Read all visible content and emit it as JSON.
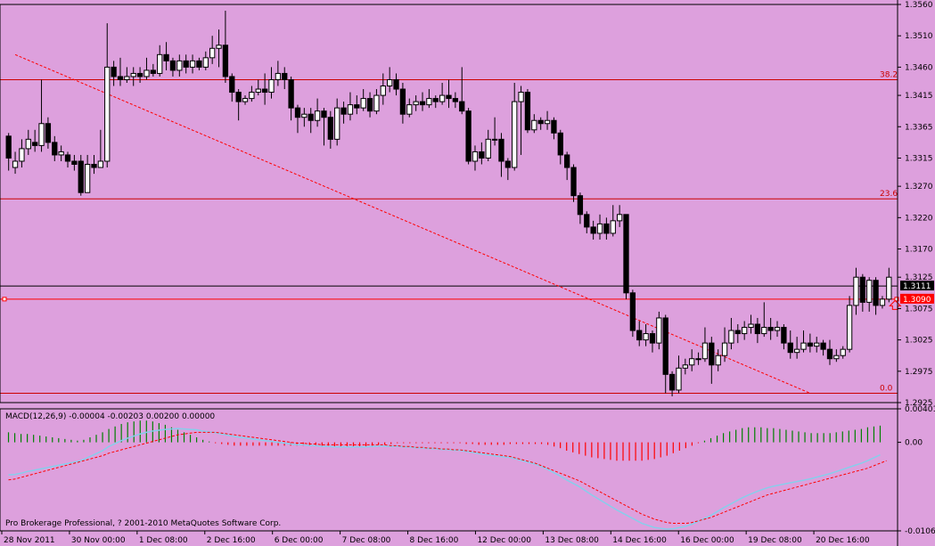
{
  "chart_data": [
    {
      "type": "candlestick",
      "ylim": [
        1.2925,
        1.356
      ],
      "price_ticks": [
        "1.3560",
        "1.3510",
        "1.3460",
        "1.3415",
        "1.3365",
        "1.3315",
        "1.3270",
        "1.3220",
        "1.3170",
        "1.3125",
        "1.3075",
        "1.3025",
        "1.2975",
        "1.2925"
      ],
      "time_labels": [
        "28 Nov 2011",
        "30 Nov 00:00",
        "1 Dec 08:00",
        "2 Dec 16:00",
        "6 Dec 00:00",
        "7 Dec 08:00",
        "8 Dec 16:00",
        "12 Dec 00:00",
        "13 Dec 08:00",
        "14 Dec 16:00",
        "16 Dec 00:00",
        "19 Dec 08:00",
        "20 Dec 16:00"
      ],
      "horizontal_lines": [
        {
          "label": "38.2",
          "price": 1.344,
          "color": "#cc0000"
        },
        {
          "label": "23.6",
          "price": 1.325,
          "color": "#cc0000"
        },
        {
          "label": "0.0",
          "price": 1.294,
          "color": "#cc0000"
        },
        {
          "label": "1.3111",
          "price": 1.3111,
          "color": "#000000"
        },
        {
          "label": "1.3090",
          "price": 1.309,
          "color": "#ff0000"
        }
      ],
      "trendline": {
        "start": [
          1,
          1.348
        ],
        "end": [
          122,
          1.294
        ],
        "color": "#ff0000",
        "style": "dashed"
      },
      "candles": [
        [
          1.335,
          1.3315,
          1.3355,
          1.3295
        ],
        [
          1.33,
          1.331,
          1.3325,
          1.329
        ],
        [
          1.331,
          1.333,
          1.3345,
          1.33
        ],
        [
          1.333,
          1.3345,
          1.336,
          1.332
        ],
        [
          1.334,
          1.3335,
          1.336,
          1.3325
        ],
        [
          1.3335,
          1.337,
          1.344,
          1.3325
        ],
        [
          1.337,
          1.334,
          1.338,
          1.333
        ],
        [
          1.334,
          1.332,
          1.335,
          1.331
        ],
        [
          1.332,
          1.3325,
          1.3335,
          1.331
        ],
        [
          1.332,
          1.331,
          1.3325,
          1.33
        ],
        [
          1.331,
          1.3305,
          1.332,
          1.3295
        ],
        [
          1.331,
          1.326,
          1.332,
          1.3255
        ],
        [
          1.326,
          1.3305,
          1.332,
          1.326
        ],
        [
          1.3305,
          1.33,
          1.332,
          1.329
        ],
        [
          1.33,
          1.331,
          1.336,
          1.33
        ],
        [
          1.331,
          1.346,
          1.353,
          1.33
        ],
        [
          1.346,
          1.3445,
          1.347,
          1.343
        ],
        [
          1.3445,
          1.344,
          1.3475,
          1.343
        ],
        [
          1.344,
          1.3445,
          1.346,
          1.3435
        ],
        [
          1.3445,
          1.345,
          1.346,
          1.343
        ],
        [
          1.345,
          1.3445,
          1.346,
          1.3435
        ],
        [
          1.3445,
          1.3455,
          1.3475,
          1.344
        ],
        [
          1.3455,
          1.345,
          1.3465,
          1.3445
        ],
        [
          1.345,
          1.348,
          1.3495,
          1.3445
        ],
        [
          1.348,
          1.347,
          1.35,
          1.3455
        ],
        [
          1.347,
          1.3455,
          1.3475,
          1.3445
        ],
        [
          1.3455,
          1.347,
          1.348,
          1.3445
        ],
        [
          1.347,
          1.346,
          1.348,
          1.345
        ],
        [
          1.346,
          1.347,
          1.348,
          1.345
        ],
        [
          1.347,
          1.346,
          1.3475,
          1.3455
        ],
        [
          1.346,
          1.3475,
          1.3485,
          1.3455
        ],
        [
          1.3475,
          1.349,
          1.351,
          1.3465
        ],
        [
          1.349,
          1.3495,
          1.352,
          1.346
        ],
        [
          1.3495,
          1.3445,
          1.355,
          1.3435
        ],
        [
          1.3445,
          1.342,
          1.345,
          1.3405
        ],
        [
          1.342,
          1.3405,
          1.3425,
          1.3375
        ],
        [
          1.3405,
          1.341,
          1.3415,
          1.34
        ],
        [
          1.341,
          1.342,
          1.343,
          1.3405
        ],
        [
          1.342,
          1.3425,
          1.344,
          1.3415
        ],
        [
          1.3425,
          1.342,
          1.345,
          1.34
        ],
        [
          1.342,
          1.344,
          1.346,
          1.341
        ],
        [
          1.344,
          1.345,
          1.347,
          1.343
        ],
        [
          1.345,
          1.344,
          1.346,
          1.3425
        ],
        [
          1.344,
          1.3395,
          1.3445,
          1.3375
        ],
        [
          1.3395,
          1.338,
          1.34,
          1.3355
        ],
        [
          1.338,
          1.3385,
          1.3395,
          1.3365
        ],
        [
          1.3385,
          1.3375,
          1.3395,
          1.3355
        ],
        [
          1.3375,
          1.339,
          1.341,
          1.3365
        ],
        [
          1.339,
          1.338,
          1.3395,
          1.3335
        ],
        [
          1.338,
          1.3345,
          1.339,
          1.333
        ],
        [
          1.3345,
          1.3395,
          1.341,
          1.3335
        ],
        [
          1.3395,
          1.3385,
          1.3405,
          1.337
        ],
        [
          1.3385,
          1.34,
          1.342,
          1.3375
        ],
        [
          1.34,
          1.3395,
          1.3415,
          1.3385
        ],
        [
          1.3395,
          1.341,
          1.3425,
          1.339
        ],
        [
          1.341,
          1.339,
          1.342,
          1.338
        ],
        [
          1.339,
          1.3415,
          1.3425,
          1.3385
        ],
        [
          1.3415,
          1.343,
          1.345,
          1.34
        ],
        [
          1.343,
          1.344,
          1.346,
          1.342
        ],
        [
          1.344,
          1.3425,
          1.345,
          1.3415
        ],
        [
          1.3425,
          1.3385,
          1.3435,
          1.337
        ],
        [
          1.3385,
          1.34,
          1.341,
          1.338
        ],
        [
          1.34,
          1.3405,
          1.3415,
          1.339
        ],
        [
          1.3405,
          1.34,
          1.342,
          1.339
        ],
        [
          1.34,
          1.341,
          1.3425,
          1.3395
        ],
        [
          1.341,
          1.3405,
          1.3415,
          1.3395
        ],
        [
          1.3405,
          1.3415,
          1.3435,
          1.34
        ],
        [
          1.3415,
          1.341,
          1.344,
          1.3395
        ],
        [
          1.341,
          1.3405,
          1.342,
          1.3395
        ],
        [
          1.3405,
          1.339,
          1.346,
          1.3385
        ],
        [
          1.339,
          1.331,
          1.3395,
          1.3305
        ],
        [
          1.331,
          1.3325,
          1.3335,
          1.3295
        ],
        [
          1.3325,
          1.3315,
          1.334,
          1.3305
        ],
        [
          1.3315,
          1.3345,
          1.336,
          1.331
        ],
        [
          1.3345,
          1.3345,
          1.338,
          1.3335
        ],
        [
          1.3345,
          1.331,
          1.3355,
          1.3285
        ],
        [
          1.331,
          1.33,
          1.3315,
          1.328
        ],
        [
          1.33,
          1.3405,
          1.3435,
          1.3295
        ],
        [
          1.3405,
          1.342,
          1.343,
          1.332
        ],
        [
          1.342,
          1.336,
          1.3425,
          1.3355
        ],
        [
          1.336,
          1.3375,
          1.3385,
          1.3355
        ],
        [
          1.3375,
          1.337,
          1.338,
          1.336
        ],
        [
          1.337,
          1.3375,
          1.339,
          1.336
        ],
        [
          1.3375,
          1.3355,
          1.338,
          1.3345
        ],
        [
          1.3355,
          1.332,
          1.336,
          1.3305
        ],
        [
          1.332,
          1.33,
          1.3325,
          1.328
        ],
        [
          1.33,
          1.3255,
          1.3305,
          1.3245
        ],
        [
          1.3255,
          1.3225,
          1.326,
          1.321
        ],
        [
          1.3225,
          1.3205,
          1.323,
          1.3195
        ],
        [
          1.3205,
          1.3195,
          1.3215,
          1.3185
        ],
        [
          1.3195,
          1.321,
          1.3225,
          1.3185
        ],
        [
          1.321,
          1.3195,
          1.322,
          1.3185
        ],
        [
          1.3195,
          1.3215,
          1.324,
          1.319
        ],
        [
          1.3215,
          1.3225,
          1.324,
          1.3205
        ],
        [
          1.3225,
          1.31,
          1.3225,
          1.309
        ],
        [
          1.31,
          1.304,
          1.3105,
          1.303
        ],
        [
          1.304,
          1.3025,
          1.3055,
          1.3015
        ],
        [
          1.3025,
          1.3035,
          1.305,
          1.3015
        ],
        [
          1.3035,
          1.302,
          1.304,
          1.3005
        ],
        [
          1.302,
          1.306,
          1.307,
          1.301
        ],
        [
          1.306,
          1.297,
          1.3065,
          1.294
        ],
        [
          1.297,
          1.2945,
          1.2975,
          1.2935
        ],
        [
          1.2945,
          1.298,
          1.3,
          1.294
        ],
        [
          1.298,
          1.2985,
          1.2995,
          1.297
        ],
        [
          1.2985,
          1.2995,
          1.301,
          1.2975
        ],
        [
          1.2995,
          1.2995,
          1.3005,
          1.2985
        ],
        [
          1.2995,
          1.302,
          1.3045,
          1.299
        ],
        [
          1.302,
          1.2985,
          1.303,
          1.2955
        ],
        [
          1.2985,
          1.3,
          1.301,
          1.2975
        ],
        [
          1.3,
          1.302,
          1.3045,
          1.299
        ],
        [
          1.302,
          1.304,
          1.306,
          1.301
        ],
        [
          1.304,
          1.3035,
          1.305,
          1.302
        ],
        [
          1.3035,
          1.3045,
          1.3055,
          1.3025
        ],
        [
          1.3045,
          1.305,
          1.3065,
          1.3035
        ],
        [
          1.305,
          1.3035,
          1.306,
          1.302
        ],
        [
          1.3035,
          1.3045,
          1.3085,
          1.303
        ],
        [
          1.3045,
          1.304,
          1.306,
          1.3025
        ],
        [
          1.304,
          1.3045,
          1.3055,
          1.303
        ],
        [
          1.3045,
          1.302,
          1.305,
          1.301
        ],
        [
          1.302,
          1.3005,
          1.304,
          1.2995
        ],
        [
          1.3005,
          1.301,
          1.303,
          1.2995
        ],
        [
          1.301,
          1.302,
          1.304,
          1.3005
        ],
        [
          1.302,
          1.3015,
          1.3035,
          1.3005
        ],
        [
          1.3015,
          1.302,
          1.303,
          1.3005
        ],
        [
          1.302,
          1.301,
          1.3025,
          1.3
        ],
        [
          1.301,
          1.2995,
          1.3025,
          1.2985
        ],
        [
          1.2995,
          1.3,
          1.301,
          1.299
        ],
        [
          1.3,
          1.301,
          1.3015,
          1.2995
        ],
        [
          1.301,
          1.308,
          1.3095,
          1.3005
        ],
        [
          1.308,
          1.3125,
          1.314,
          1.3065
        ],
        [
          1.3125,
          1.3085,
          1.313,
          1.307
        ],
        [
          1.3085,
          1.312,
          1.3125,
          1.307
        ],
        [
          1.312,
          1.308,
          1.3125,
          1.3065
        ],
        [
          1.308,
          1.309,
          1.3095,
          1.3075
        ],
        [
          1.309,
          1.3125,
          1.314,
          1.3085
        ]
      ],
      "current_price_marker": "arrow-up"
    },
    {
      "type": "histogram+line",
      "title": "MACD(12,26,9) -0.00004 -0.00203 0.00200 0.00000",
      "ylim": [
        -0.0106,
        0.00401
      ],
      "ticks": [
        "0.00401",
        "0.00",
        "-0.0106"
      ],
      "histogram_colors": {
        "positive": "#008000",
        "negative": "#ff0000"
      },
      "histogram": [
        0.0012,
        0.0011,
        0.001,
        0.001,
        0.0009,
        0.0008,
        0.0007,
        0.0006,
        0.0005,
        0.0004,
        0.0003,
        0.0002,
        0.0003,
        0.0006,
        0.0009,
        0.0012,
        0.0016,
        0.0019,
        0.0022,
        0.0024,
        0.0025,
        0.0026,
        0.0026,
        0.0025,
        0.0023,
        0.0021,
        0.0018,
        0.0015,
        0.0012,
        0.0009,
        0.0006,
        0.0003,
        0.0001,
        -0.0001,
        -0.0002,
        -0.0003,
        -0.0004,
        -0.0004,
        -0.0004,
        -0.0004,
        -0.0004,
        -0.0004,
        -0.0004,
        -0.0004,
        -0.0004,
        -0.0004,
        -0.0004,
        -0.0004,
        -0.0004,
        -0.0004,
        -0.0004,
        -0.0004,
        -0.0005,
        -0.0005,
        -0.0005,
        -0.0005,
        -0.0005,
        -0.0005,
        -0.0004,
        -0.0003,
        -0.0003,
        -0.0002,
        -0.0001,
        -0.0001,
        -0.0001,
        -0.0001,
        -0.0001,
        -0.0001,
        -0.0001,
        -0.0001,
        -0.0001,
        -0.0001,
        -0.0001,
        -0.0002,
        -0.0002,
        -0.0003,
        -0.0003,
        -0.0003,
        -0.0003,
        -0.0003,
        -0.0002,
        -0.0002,
        -0.0002,
        -0.0002,
        -0.0002,
        -0.0002,
        -0.0003,
        -0.0005,
        -0.0007,
        -0.001,
        -0.0012,
        -0.0014,
        -0.0016,
        -0.0018,
        -0.0019,
        -0.002,
        -0.0021,
        -0.0022,
        -0.0022,
        -0.0022,
        -0.0022,
        -0.0022,
        -0.0021,
        -0.002,
        -0.0018,
        -0.0016,
        -0.0013,
        -0.001,
        -0.0007,
        -0.0004,
        -0.0001,
        0.0002,
        0.0005,
        0.0008,
        0.0011,
        0.0013,
        0.0015,
        0.0017,
        0.0018,
        0.0018,
        0.0018,
        0.0017,
        0.0017,
        0.0016,
        0.0015,
        0.0014,
        0.0013,
        0.0012,
        0.0011,
        0.0011,
        0.0011,
        0.0011,
        0.0012,
        0.0013,
        0.0014,
        0.0015,
        0.0016,
        0.0018,
        0.0019,
        0.002
      ],
      "signal": [
        -0.0045,
        -0.0044,
        -0.0042,
        -0.004,
        -0.0038,
        -0.0036,
        -0.0034,
        -0.0032,
        -0.003,
        -0.0028,
        -0.0026,
        -0.0024,
        -0.0022,
        -0.002,
        -0.0018,
        -0.0016,
        -0.0013,
        -0.0011,
        -0.0009,
        -0.0007,
        -0.0005,
        -0.0003,
        -0.0001,
        0.0001,
        0.0003,
        0.0005,
        0.0007,
        0.0009,
        0.001,
        0.0011,
        0.0012,
        0.0012,
        0.0012,
        0.0012,
        0.0011,
        0.001,
        0.0009,
        0.0008,
        0.0007,
        0.0006,
        0.0005,
        0.0004,
        0.0003,
        0.0002,
        0.0001,
        0.0,
        -0.0001,
        -0.0001,
        -0.0002,
        -0.0002,
        -0.0003,
        -0.0003,
        -0.0003,
        -0.0003,
        -0.0003,
        -0.0003,
        -0.0003,
        -0.0003,
        -0.0003,
        -0.0003,
        -0.0003,
        -0.0004,
        -0.0004,
        -0.0005,
        -0.0005,
        -0.0006,
        -0.0006,
        -0.0007,
        -0.0007,
        -0.0008,
        -0.0008,
        -0.0009,
        -0.0009,
        -0.001,
        -0.0011,
        -0.0012,
        -0.0013,
        -0.0014,
        -0.0015,
        -0.0016,
        -0.0017,
        -0.0019,
        -0.0021,
        -0.0023,
        -0.0025,
        -0.0028,
        -0.0031,
        -0.0034,
        -0.0037,
        -0.004,
        -0.0043,
        -0.0046,
        -0.005,
        -0.0054,
        -0.0058,
        -0.0062,
        -0.0066,
        -0.007,
        -0.0074,
        -0.0078,
        -0.0082,
        -0.0086,
        -0.0089,
        -0.0092,
        -0.0094,
        -0.0096,
        -0.0097,
        -0.0097,
        -0.0097,
        -0.0096,
        -0.0094,
        -0.0092,
        -0.009,
        -0.0087,
        -0.0084,
        -0.0081,
        -0.0078,
        -0.0075,
        -0.0072,
        -0.0069,
        -0.0066,
        -0.0063,
        -0.0061,
        -0.0059,
        -0.0057,
        -0.0055,
        -0.0053,
        -0.0051,
        -0.0049,
        -0.0047,
        -0.0045,
        -0.0043,
        -0.0041,
        -0.0039,
        -0.0037,
        -0.0035,
        -0.0033,
        -0.0031,
        -0.0028,
        -0.0025,
        -0.0022
      ],
      "signal_color": "#ff0000",
      "macd_line_color": "#87ceeb"
    }
  ],
  "footer": {
    "copyright": "Pro Brokerage Professional, ? 2001-2010 MetaQuotes Software Corp."
  },
  "colors": {
    "background": "#dda0dd",
    "bull": "#ffffff",
    "bear": "#000000",
    "axis": "#000000"
  }
}
